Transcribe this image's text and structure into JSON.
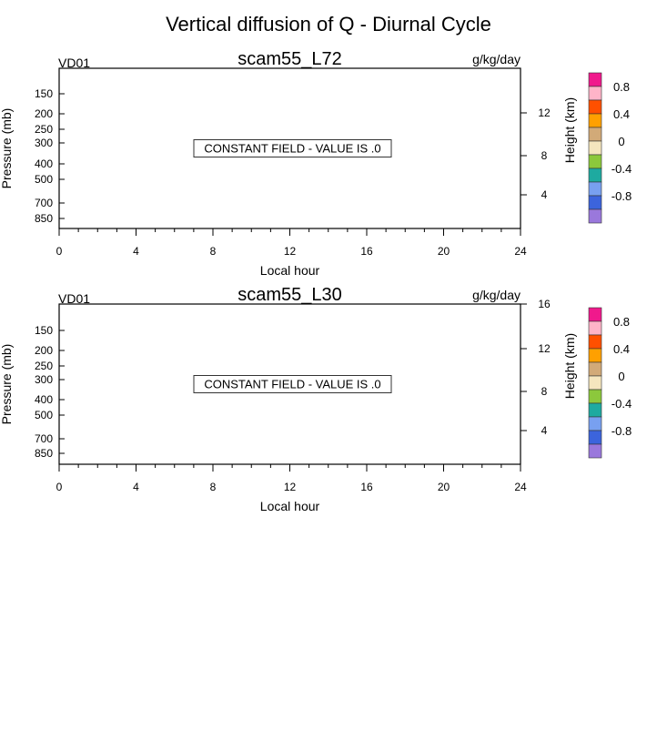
{
  "title": "Vertical diffusion of Q - Diurnal Cycle",
  "chart_data": [
    {
      "type": "heatmap",
      "title": "scam55_L72",
      "left_label": "VD01",
      "units": "g/kg/day",
      "xlabel": "Local hour",
      "ylabel": "Pressure (mb)",
      "right_ylabel": "Height (km)",
      "x_ticks": [
        "0",
        "4",
        "8",
        "12",
        "16",
        "20",
        "24"
      ],
      "xlim": [
        0,
        24
      ],
      "y_ticks": [
        "150",
        "200",
        "250",
        "300",
        "400",
        "500",
        "700",
        "850"
      ],
      "right_ticks": [
        "12",
        "8",
        "4"
      ],
      "message": "CONSTANT FIELD - VALUE IS .0",
      "colorbar_labels": [
        "0.8",
        "0.4",
        "0",
        "-0.4",
        "-0.8"
      ]
    },
    {
      "type": "heatmap",
      "title": "scam55_L30",
      "left_label": "VD01",
      "units": "g/kg/day",
      "xlabel": "Local hour",
      "ylabel": "Pressure (mb)",
      "right_ylabel": "Height (km)",
      "x_ticks": [
        "0",
        "4",
        "8",
        "12",
        "16",
        "20",
        "24"
      ],
      "xlim": [
        0,
        24
      ],
      "y_ticks": [
        "150",
        "200",
        "250",
        "300",
        "400",
        "500",
        "700",
        "850"
      ],
      "right_ticks": [
        "16",
        "12",
        "8",
        "4"
      ],
      "message": "CONSTANT FIELD - VALUE IS .0",
      "colorbar_labels": [
        "0.8",
        "0.4",
        "0",
        "-0.4",
        "-0.8"
      ]
    }
  ],
  "colorbar_colors": [
    "#f0198c",
    "#ffb4c8",
    "#ff5000",
    "#ffa000",
    "#d2aa78",
    "#f5e6be",
    "#8cc83c",
    "#1eaaa0",
    "#78a0f0",
    "#3c64dc",
    "#9a78dc"
  ]
}
